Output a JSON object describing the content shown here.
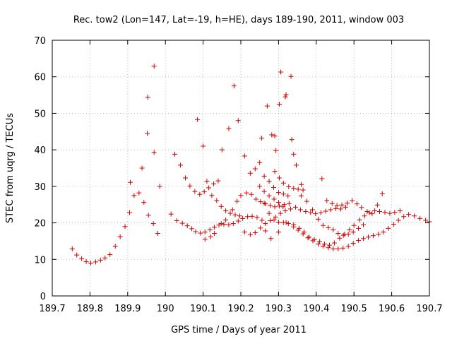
{
  "chart_data": {
    "type": "scatter",
    "title": "Rec. tow2 (Lon=147, Lat=-19, h=HE), days 189-190, 2011, window 003",
    "xlabel": "GPS time / Days of year 2011",
    "ylabel": "STEC from uqrg / TECUs",
    "xlim": [
      189.7,
      190.7
    ],
    "ylim": [
      0,
      70
    ],
    "grid": true,
    "marker": "+",
    "color": "#d00000",
    "xticks": [
      189.7,
      189.8,
      189.9,
      190.0,
      190.1,
      190.2,
      190.3,
      190.4,
      190.5,
      190.6,
      190.7
    ],
    "xtick_labels": [
      "189.7",
      "189.8",
      "189.9",
      "190",
      "190.1",
      "190.2",
      "190.3",
      "190.4",
      "190.5",
      "190.6",
      "190.7"
    ],
    "yticks": [
      0,
      10,
      20,
      30,
      40,
      50,
      60,
      70
    ],
    "ytick_labels": [
      "0",
      "10",
      "20",
      "30",
      "40",
      "50",
      "60",
      "70"
    ],
    "points": [
      [
        189.753,
        12.9
      ],
      [
        189.765,
        11.2
      ],
      [
        189.778,
        10.2
      ],
      [
        189.79,
        9.4
      ],
      [
        189.802,
        9.0
      ],
      [
        189.815,
        9.3
      ],
      [
        189.828,
        9.8
      ],
      [
        189.84,
        10.4
      ],
      [
        189.853,
        11.3
      ],
      [
        189.867,
        13.6
      ],
      [
        189.88,
        16.2
      ],
      [
        189.893,
        19.0
      ],
      [
        189.905,
        22.8
      ],
      [
        189.917,
        27.5
      ],
      [
        189.93,
        28.2
      ],
      [
        189.943,
        25.6
      ],
      [
        189.955,
        22.1
      ],
      [
        189.968,
        19.8
      ],
      [
        189.98,
        17.1
      ],
      [
        189.907,
        31.1
      ],
      [
        189.938,
        35.0
      ],
      [
        189.952,
        44.5
      ],
      [
        189.953,
        54.4
      ],
      [
        189.97,
        62.9
      ],
      [
        189.97,
        39.3
      ],
      [
        189.985,
        30.0
      ],
      [
        190.015,
        22.4
      ],
      [
        190.03,
        20.6
      ],
      [
        190.045,
        19.9
      ],
      [
        190.058,
        19.2
      ],
      [
        190.07,
        18.4
      ],
      [
        190.08,
        17.6
      ],
      [
        190.093,
        17.2
      ],
      [
        190.105,
        17.5
      ],
      [
        190.118,
        18.1
      ],
      [
        190.13,
        18.8
      ],
      [
        190.142,
        19.4
      ],
      [
        190.155,
        19.6
      ],
      [
        190.168,
        19.5
      ],
      [
        190.18,
        19.8
      ],
      [
        190.193,
        20.5
      ],
      [
        190.205,
        21.2
      ],
      [
        190.218,
        21.7
      ],
      [
        190.23,
        21.8
      ],
      [
        190.243,
        21.5
      ],
      [
        190.256,
        20.7
      ],
      [
        190.025,
        38.8
      ],
      [
        190.04,
        35.8
      ],
      [
        190.053,
        32.3
      ],
      [
        190.065,
        30.1
      ],
      [
        190.078,
        28.6
      ],
      [
        190.091,
        27.8
      ],
      [
        190.103,
        28.5
      ],
      [
        190.115,
        29.6
      ],
      [
        190.128,
        30.7
      ],
      [
        190.14,
        31.5
      ],
      [
        190.085,
        48.3
      ],
      [
        190.1,
        41.0
      ],
      [
        190.11,
        31.4
      ],
      [
        190.123,
        27.5
      ],
      [
        190.136,
        26.1
      ],
      [
        190.148,
        24.5
      ],
      [
        190.16,
        23.3
      ],
      [
        190.172,
        22.6
      ],
      [
        190.185,
        22.2
      ],
      [
        190.197,
        21.9
      ],
      [
        190.105,
        15.5
      ],
      [
        190.12,
        16.2
      ],
      [
        190.13,
        17.1
      ],
      [
        190.148,
        19.8
      ],
      [
        190.16,
        20.8
      ],
      [
        190.178,
        23.6
      ],
      [
        190.19,
        25.9
      ],
      [
        190.2,
        27.5
      ],
      [
        190.215,
        28.2
      ],
      [
        190.228,
        27.8
      ],
      [
        190.24,
        26.5
      ],
      [
        190.252,
        25.8
      ],
      [
        190.265,
        25.2
      ],
      [
        190.278,
        24.8
      ],
      [
        190.29,
        24.4
      ],
      [
        190.302,
        24.6
      ],
      [
        190.315,
        25.0
      ],
      [
        190.328,
        25.3
      ],
      [
        190.15,
        40.0
      ],
      [
        190.168,
        45.8
      ],
      [
        190.182,
        57.5
      ],
      [
        190.193,
        48.0
      ],
      [
        190.21,
        38.3
      ],
      [
        190.225,
        33.6
      ],
      [
        190.238,
        34.8
      ],
      [
        190.25,
        30.0
      ],
      [
        190.262,
        28.6
      ],
      [
        190.275,
        27.4
      ],
      [
        190.288,
        26.5
      ],
      [
        190.3,
        25.6
      ],
      [
        190.312,
        24.4
      ],
      [
        190.255,
        43.2
      ],
      [
        190.27,
        52.0
      ],
      [
        190.282,
        44.1
      ],
      [
        190.29,
        43.8
      ],
      [
        190.293,
        39.8
      ],
      [
        190.302,
        52.5
      ],
      [
        190.306,
        61.3
      ],
      [
        190.318,
        54.5
      ],
      [
        190.32,
        55.1
      ],
      [
        190.333,
        60.1
      ],
      [
        190.335,
        42.8
      ],
      [
        190.34,
        38.8
      ],
      [
        190.347,
        35.8
      ],
      [
        190.36,
        30.5
      ],
      [
        190.29,
        34.1
      ],
      [
        190.302,
        32.3
      ],
      [
        190.313,
        30.9
      ],
      [
        190.327,
        29.9
      ],
      [
        190.34,
        29.5
      ],
      [
        190.352,
        29.2
      ],
      [
        190.365,
        29.0
      ],
      [
        190.21,
        17.5
      ],
      [
        190.225,
        16.8
      ],
      [
        190.238,
        17.3
      ],
      [
        190.252,
        18.6
      ],
      [
        190.265,
        19.8
      ],
      [
        190.278,
        20.6
      ],
      [
        190.292,
        21.6
      ],
      [
        190.305,
        22.6
      ],
      [
        190.318,
        23.3
      ],
      [
        190.332,
        23.8
      ],
      [
        190.345,
        24.3
      ],
      [
        190.358,
        23.6
      ],
      [
        190.372,
        23.1
      ],
      [
        190.385,
        22.8
      ],
      [
        190.398,
        22.5
      ],
      [
        190.412,
        22.8
      ],
      [
        190.425,
        23.2
      ],
      [
        190.438,
        23.6
      ],
      [
        190.452,
        23.9
      ],
      [
        190.465,
        23.8
      ],
      [
        190.478,
        24.3
      ],
      [
        190.25,
        36.5
      ],
      [
        190.262,
        32.8
      ],
      [
        190.275,
        31.4
      ],
      [
        190.287,
        29.7
      ],
      [
        190.3,
        28.3
      ],
      [
        190.313,
        27.9
      ],
      [
        190.325,
        27.4
      ],
      [
        190.262,
        25.4
      ],
      [
        190.275,
        22.6
      ],
      [
        190.288,
        20.8
      ],
      [
        190.3,
        20.2
      ],
      [
        190.313,
        20.1
      ],
      [
        190.326,
        19.8
      ],
      [
        190.34,
        18.9
      ],
      [
        190.352,
        18.0
      ],
      [
        190.365,
        17.0
      ],
      [
        190.378,
        15.9
      ],
      [
        190.391,
        15.1
      ],
      [
        190.405,
        14.2
      ],
      [
        190.418,
        13.6
      ],
      [
        190.432,
        13.2
      ],
      [
        190.445,
        12.9
      ],
      [
        190.458,
        12.9
      ],
      [
        190.471,
        13.1
      ],
      [
        190.485,
        13.6
      ],
      [
        190.498,
        14.4
      ],
      [
        190.512,
        15.2
      ],
      [
        190.525,
        15.7
      ],
      [
        190.538,
        16.1
      ],
      [
        190.551,
        16.5
      ],
      [
        190.565,
        16.9
      ],
      [
        190.578,
        17.5
      ],
      [
        190.591,
        18.5
      ],
      [
        190.605,
        19.6
      ],
      [
        190.618,
        20.7
      ],
      [
        190.632,
        21.7
      ],
      [
        190.645,
        22.3
      ],
      [
        190.66,
        21.9
      ],
      [
        190.675,
        21.2
      ],
      [
        190.69,
        20.7
      ],
      [
        190.7,
        20.3
      ],
      [
        190.265,
        17.8
      ],
      [
        190.28,
        15.7
      ],
      [
        190.3,
        17.5
      ],
      [
        190.32,
        20.1
      ],
      [
        190.34,
        19.5
      ],
      [
        190.355,
        18.5
      ],
      [
        190.368,
        17.5
      ],
      [
        190.381,
        16.1
      ],
      [
        190.395,
        15.4
      ],
      [
        190.409,
        14.9
      ],
      [
        190.422,
        14.2
      ],
      [
        190.435,
        13.9
      ],
      [
        190.448,
        14.5
      ],
      [
        190.462,
        15.8
      ],
      [
        190.475,
        16.9
      ],
      [
        190.488,
        18.1
      ],
      [
        190.5,
        19.3
      ],
      [
        190.515,
        20.8
      ],
      [
        190.528,
        21.9
      ],
      [
        190.541,
        22.8
      ],
      [
        190.555,
        23.3
      ],
      [
        190.568,
        23.1
      ],
      [
        190.582,
        22.9
      ],
      [
        190.595,
        22.6
      ],
      [
        190.608,
        22.9
      ],
      [
        190.622,
        23.3
      ],
      [
        190.36,
        27.4
      ],
      [
        190.375,
        25.9
      ],
      [
        190.39,
        23.6
      ],
      [
        190.405,
        21.0
      ],
      [
        190.418,
        19.3
      ],
      [
        190.432,
        18.7
      ],
      [
        190.445,
        18.1
      ],
      [
        190.458,
        17.1
      ],
      [
        190.472,
        16.6
      ],
      [
        190.485,
        16.9
      ],
      [
        190.498,
        17.5
      ],
      [
        190.512,
        18.5
      ],
      [
        190.525,
        19.5
      ],
      [
        190.415,
        32.1
      ],
      [
        190.428,
        26.1
      ],
      [
        190.442,
        25.3
      ],
      [
        190.455,
        24.8
      ],
      [
        190.468,
        24.9
      ],
      [
        190.482,
        25.4
      ],
      [
        190.495,
        26.1
      ],
      [
        190.508,
        25.2
      ],
      [
        190.52,
        24.2
      ],
      [
        190.535,
        23.1
      ],
      [
        190.548,
        22.5
      ],
      [
        190.562,
        24.9
      ],
      [
        190.575,
        28.0
      ]
    ]
  }
}
